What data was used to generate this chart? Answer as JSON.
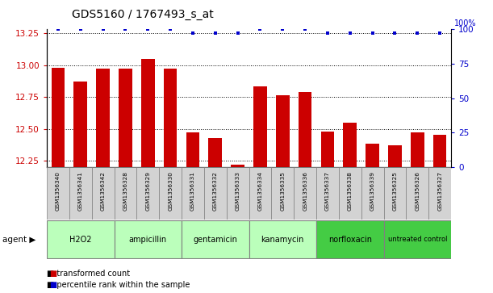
{
  "title": "GDS5160 / 1767493_s_at",
  "samples": [
    "GSM1356340",
    "GSM1356341",
    "GSM1356342",
    "GSM1356328",
    "GSM1356329",
    "GSM1356330",
    "GSM1356331",
    "GSM1356332",
    "GSM1356333",
    "GSM1356334",
    "GSM1356335",
    "GSM1356336",
    "GSM1356337",
    "GSM1356338",
    "GSM1356339",
    "GSM1356325",
    "GSM1356326",
    "GSM1356327"
  ],
  "bar_values": [
    12.98,
    12.87,
    12.97,
    12.97,
    13.05,
    12.97,
    12.47,
    12.43,
    12.22,
    12.83,
    12.76,
    12.79,
    12.48,
    12.55,
    12.38,
    12.37,
    12.47,
    12.45
  ],
  "percentile_values": [
    100,
    100,
    100,
    100,
    100,
    100,
    97,
    97,
    97,
    100,
    100,
    100,
    97,
    97,
    97,
    97,
    97,
    97
  ],
  "groups": [
    {
      "label": "H2O2",
      "start": 0,
      "end": 3,
      "color": "#bbffbb"
    },
    {
      "label": "ampicillin",
      "start": 3,
      "end": 6,
      "color": "#bbffbb"
    },
    {
      "label": "gentamicin",
      "start": 6,
      "end": 9,
      "color": "#bbffbb"
    },
    {
      "label": "kanamycin",
      "start": 9,
      "end": 12,
      "color": "#bbffbb"
    },
    {
      "label": "norfloxacin",
      "start": 12,
      "end": 15,
      "color": "#44cc44"
    },
    {
      "label": "untreated control",
      "start": 15,
      "end": 18,
      "color": "#44cc44"
    }
  ],
  "bar_color": "#cc0000",
  "dot_color": "#0000cc",
  "ylim_left": [
    12.2,
    13.28
  ],
  "ylim_right": [
    0,
    100
  ],
  "yticks_left": [
    12.25,
    12.5,
    12.75,
    13.0,
    13.25
  ],
  "yticks_right": [
    0,
    25,
    50,
    75,
    100
  ],
  "legend_transformed": "transformed count",
  "legend_percentile": "percentile rank within the sample",
  "agent_label": "agent",
  "sample_box_color": "#d3d3d3",
  "background_color": "#ffffff",
  "grid_color": "#000000"
}
